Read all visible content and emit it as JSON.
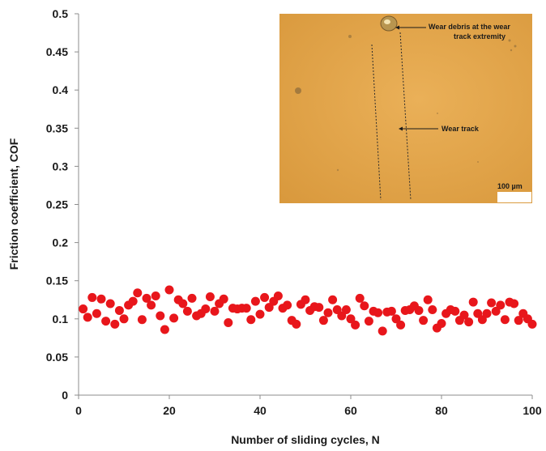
{
  "chart_data": {
    "type": "scatter",
    "xlabel": "Number of sliding cycles, N",
    "ylabel": "Friction coefficient, COF",
    "xlim": [
      0,
      100
    ],
    "ylim": [
      0,
      0.5
    ],
    "xticks": [
      0,
      20,
      40,
      60,
      80,
      100
    ],
    "yticks": [
      0,
      0.05,
      0.1,
      0.15,
      0.2,
      0.25,
      0.3,
      0.35,
      0.4,
      0.45,
      0.5
    ],
    "grid": false,
    "marker_color": "#e8161b",
    "series": [
      {
        "x": [
          1,
          2,
          3,
          4,
          5,
          6,
          7,
          8,
          9,
          10,
          11,
          12,
          13,
          14,
          15,
          16,
          17,
          18,
          19,
          20,
          21,
          22,
          23,
          24,
          25,
          26,
          27,
          28,
          29,
          30,
          31,
          32,
          33,
          34,
          35,
          36,
          37,
          38,
          39,
          40,
          41,
          42,
          43,
          44,
          45,
          46,
          47,
          48,
          49,
          50,
          51,
          52,
          53,
          54,
          55,
          56,
          57,
          58,
          59,
          60,
          61,
          62,
          63,
          64,
          65,
          66,
          67,
          68,
          69,
          70,
          71,
          72,
          73,
          74,
          75,
          76,
          77,
          78,
          79,
          80,
          81,
          82,
          83,
          84,
          85,
          86,
          87,
          88,
          89,
          90,
          91,
          92,
          93,
          94,
          95,
          96,
          97,
          98,
          99,
          100
        ],
        "y": [
          0.113,
          0.102,
          0.128,
          0.107,
          0.126,
          0.097,
          0.12,
          0.093,
          0.111,
          0.1,
          0.118,
          0.123,
          0.134,
          0.099,
          0.127,
          0.118,
          0.13,
          0.104,
          0.086,
          0.138,
          0.101,
          0.125,
          0.12,
          0.11,
          0.127,
          0.104,
          0.107,
          0.113,
          0.129,
          0.11,
          0.12,
          0.126,
          0.095,
          0.114,
          0.113,
          0.114,
          0.114,
          0.099,
          0.123,
          0.106,
          0.128,
          0.115,
          0.123,
          0.13,
          0.114,
          0.118,
          0.098,
          0.093,
          0.119,
          0.125,
          0.111,
          0.116,
          0.115,
          0.098,
          0.108,
          0.125,
          0.112,
          0.104,
          0.112,
          0.1,
          0.092,
          0.127,
          0.117,
          0.097,
          0.11,
          0.108,
          0.084,
          0.109,
          0.11,
          0.1,
          0.092,
          0.111,
          0.112,
          0.117,
          0.111,
          0.098,
          0.125,
          0.112,
          0.088,
          0.094,
          0.107,
          0.112,
          0.11,
          0.098,
          0.105,
          0.096,
          0.122,
          0.107,
          0.099,
          0.107,
          0.121,
          0.11,
          0.118,
          0.099,
          0.122,
          0.12,
          0.098,
          0.107,
          0.1,
          0.093
        ]
      }
    ]
  },
  "inset": {
    "annotation_debris": "Wear debris at the wear track extremity",
    "annotation_debris_line1": "Wear debris at the wear",
    "annotation_debris_line2": "track extremity",
    "annotation_track": "Wear track",
    "scale_bar_label": "100 µm",
    "background_color": "#e6a84c"
  }
}
